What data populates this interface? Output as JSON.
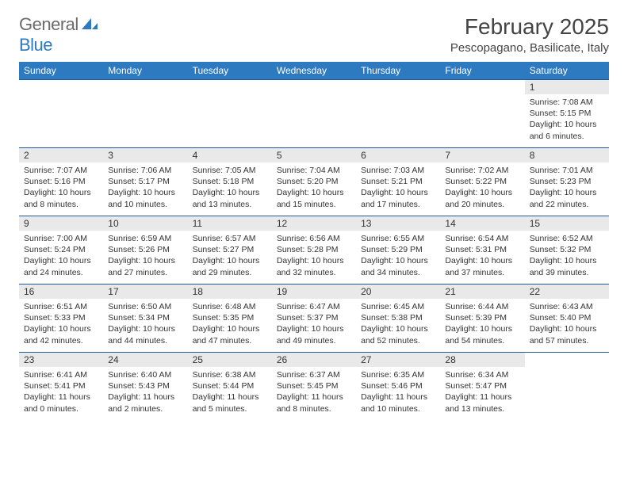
{
  "brand": {
    "line1": "General",
    "line2": "Blue"
  },
  "colors": {
    "header_bg": "#2e7ac0",
    "header_text": "#ffffff",
    "row_border": "#1f5a94",
    "daynum_bg": "#e9e9e9",
    "text": "#333333",
    "logo_gray": "#6b6b6b",
    "logo_accent": "#2e7ac0"
  },
  "title": "February 2025",
  "location": "Pescopagano, Basilicate, Italy",
  "weekdays": [
    "Sunday",
    "Monday",
    "Tuesday",
    "Wednesday",
    "Thursday",
    "Friday",
    "Saturday"
  ],
  "weeks": [
    [
      {
        "empty": true
      },
      {
        "empty": true
      },
      {
        "empty": true
      },
      {
        "empty": true
      },
      {
        "empty": true
      },
      {
        "empty": true
      },
      {
        "day": "1",
        "sunrise": "Sunrise: 7:08 AM",
        "sunset": "Sunset: 5:15 PM",
        "daylight": "Daylight: 10 hours and 6 minutes."
      }
    ],
    [
      {
        "day": "2",
        "sunrise": "Sunrise: 7:07 AM",
        "sunset": "Sunset: 5:16 PM",
        "daylight": "Daylight: 10 hours and 8 minutes."
      },
      {
        "day": "3",
        "sunrise": "Sunrise: 7:06 AM",
        "sunset": "Sunset: 5:17 PM",
        "daylight": "Daylight: 10 hours and 10 minutes."
      },
      {
        "day": "4",
        "sunrise": "Sunrise: 7:05 AM",
        "sunset": "Sunset: 5:18 PM",
        "daylight": "Daylight: 10 hours and 13 minutes."
      },
      {
        "day": "5",
        "sunrise": "Sunrise: 7:04 AM",
        "sunset": "Sunset: 5:20 PM",
        "daylight": "Daylight: 10 hours and 15 minutes."
      },
      {
        "day": "6",
        "sunrise": "Sunrise: 7:03 AM",
        "sunset": "Sunset: 5:21 PM",
        "daylight": "Daylight: 10 hours and 17 minutes."
      },
      {
        "day": "7",
        "sunrise": "Sunrise: 7:02 AM",
        "sunset": "Sunset: 5:22 PM",
        "daylight": "Daylight: 10 hours and 20 minutes."
      },
      {
        "day": "8",
        "sunrise": "Sunrise: 7:01 AM",
        "sunset": "Sunset: 5:23 PM",
        "daylight": "Daylight: 10 hours and 22 minutes."
      }
    ],
    [
      {
        "day": "9",
        "sunrise": "Sunrise: 7:00 AM",
        "sunset": "Sunset: 5:24 PM",
        "daylight": "Daylight: 10 hours and 24 minutes."
      },
      {
        "day": "10",
        "sunrise": "Sunrise: 6:59 AM",
        "sunset": "Sunset: 5:26 PM",
        "daylight": "Daylight: 10 hours and 27 minutes."
      },
      {
        "day": "11",
        "sunrise": "Sunrise: 6:57 AM",
        "sunset": "Sunset: 5:27 PM",
        "daylight": "Daylight: 10 hours and 29 minutes."
      },
      {
        "day": "12",
        "sunrise": "Sunrise: 6:56 AM",
        "sunset": "Sunset: 5:28 PM",
        "daylight": "Daylight: 10 hours and 32 minutes."
      },
      {
        "day": "13",
        "sunrise": "Sunrise: 6:55 AM",
        "sunset": "Sunset: 5:29 PM",
        "daylight": "Daylight: 10 hours and 34 minutes."
      },
      {
        "day": "14",
        "sunrise": "Sunrise: 6:54 AM",
        "sunset": "Sunset: 5:31 PM",
        "daylight": "Daylight: 10 hours and 37 minutes."
      },
      {
        "day": "15",
        "sunrise": "Sunrise: 6:52 AM",
        "sunset": "Sunset: 5:32 PM",
        "daylight": "Daylight: 10 hours and 39 minutes."
      }
    ],
    [
      {
        "day": "16",
        "sunrise": "Sunrise: 6:51 AM",
        "sunset": "Sunset: 5:33 PM",
        "daylight": "Daylight: 10 hours and 42 minutes."
      },
      {
        "day": "17",
        "sunrise": "Sunrise: 6:50 AM",
        "sunset": "Sunset: 5:34 PM",
        "daylight": "Daylight: 10 hours and 44 minutes."
      },
      {
        "day": "18",
        "sunrise": "Sunrise: 6:48 AM",
        "sunset": "Sunset: 5:35 PM",
        "daylight": "Daylight: 10 hours and 47 minutes."
      },
      {
        "day": "19",
        "sunrise": "Sunrise: 6:47 AM",
        "sunset": "Sunset: 5:37 PM",
        "daylight": "Daylight: 10 hours and 49 minutes."
      },
      {
        "day": "20",
        "sunrise": "Sunrise: 6:45 AM",
        "sunset": "Sunset: 5:38 PM",
        "daylight": "Daylight: 10 hours and 52 minutes."
      },
      {
        "day": "21",
        "sunrise": "Sunrise: 6:44 AM",
        "sunset": "Sunset: 5:39 PM",
        "daylight": "Daylight: 10 hours and 54 minutes."
      },
      {
        "day": "22",
        "sunrise": "Sunrise: 6:43 AM",
        "sunset": "Sunset: 5:40 PM",
        "daylight": "Daylight: 10 hours and 57 minutes."
      }
    ],
    [
      {
        "day": "23",
        "sunrise": "Sunrise: 6:41 AM",
        "sunset": "Sunset: 5:41 PM",
        "daylight": "Daylight: 11 hours and 0 minutes."
      },
      {
        "day": "24",
        "sunrise": "Sunrise: 6:40 AM",
        "sunset": "Sunset: 5:43 PM",
        "daylight": "Daylight: 11 hours and 2 minutes."
      },
      {
        "day": "25",
        "sunrise": "Sunrise: 6:38 AM",
        "sunset": "Sunset: 5:44 PM",
        "daylight": "Daylight: 11 hours and 5 minutes."
      },
      {
        "day": "26",
        "sunrise": "Sunrise: 6:37 AM",
        "sunset": "Sunset: 5:45 PM",
        "daylight": "Daylight: 11 hours and 8 minutes."
      },
      {
        "day": "27",
        "sunrise": "Sunrise: 6:35 AM",
        "sunset": "Sunset: 5:46 PM",
        "daylight": "Daylight: 11 hours and 10 minutes."
      },
      {
        "day": "28",
        "sunrise": "Sunrise: 6:34 AM",
        "sunset": "Sunset: 5:47 PM",
        "daylight": "Daylight: 11 hours and 13 minutes."
      },
      {
        "empty": true
      }
    ]
  ]
}
